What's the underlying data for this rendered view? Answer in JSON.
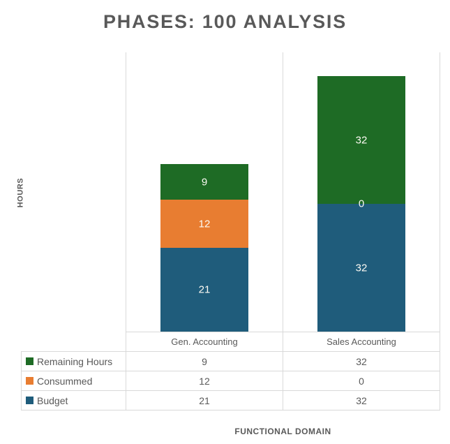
{
  "title": "PHASES: 100 ANALYSIS",
  "colors": {
    "text": "#595959",
    "grid_line": "#D9D9D9",
    "background": "#FFFFFF",
    "bar_label": "#FCFAF3",
    "series_green": "#1E6B25",
    "series_orange": "#E87D31",
    "series_blue": "#1F5C7B"
  },
  "chart_data": {
    "type": "bar",
    "stacked": true,
    "title": "PHASES: 100 ANALYSIS",
    "xlabel": "FUNCTIONAL DOMAIN",
    "ylabel": "HOURS",
    "categories": [
      "Gen. Accounting",
      "Sales Accounting"
    ],
    "series": [
      {
        "name": "Remaining Hours",
        "color": "#1E6B25",
        "values": [
          9,
          32
        ]
      },
      {
        "name": "Consummed",
        "color": "#E87D31",
        "values": [
          12,
          0
        ]
      },
      {
        "name": "Budget",
        "color": "#1F5C7B",
        "values": [
          21,
          32
        ]
      }
    ],
    "totals": [
      42,
      64
    ],
    "ylim": [
      0,
      70
    ],
    "grid": false,
    "legend_position": "table-left",
    "data_table": true,
    "data_labels": true
  }
}
